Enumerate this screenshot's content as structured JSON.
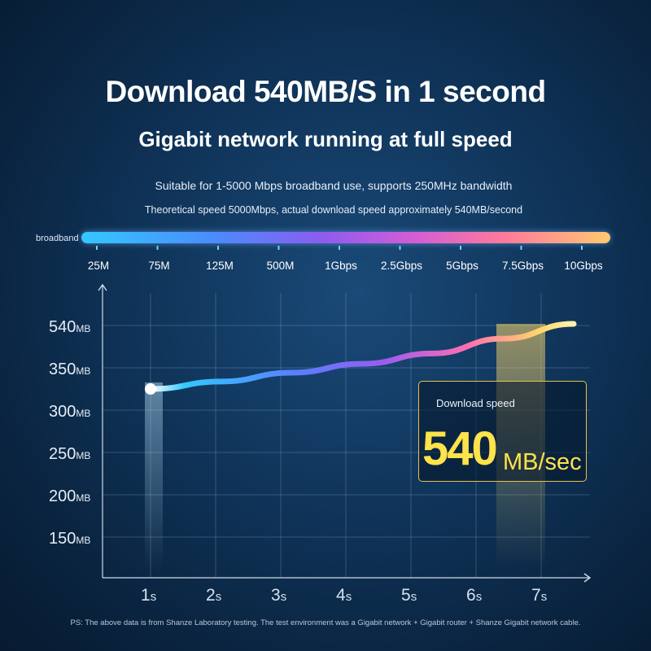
{
  "header": {
    "title": "Download 540MB/S in 1 second",
    "subtitle": "Gigabit network running at full speed",
    "line1": "Suitable for 1-5000 Mbps broadband use, supports 250MHz bandwidth",
    "line2": "Theoretical speed 5000Mbps, actual download speed approximately 540MB/second"
  },
  "broadband": {
    "label": "broadband",
    "ticks": [
      "25M",
      "75M",
      "125M",
      "500M",
      "1Gbps",
      "2.5Gbps",
      "5Gbps",
      "7.5Gbps",
      "10Gbps"
    ],
    "gradient": [
      "#33c8ff",
      "#4a8cff",
      "#8b5cf0",
      "#d05cd8",
      "#ff7a9a",
      "#ffc870"
    ]
  },
  "speed_box": {
    "label": "Download speed",
    "value": "540",
    "unit": "MB/sec",
    "accent": "#ffe34a"
  },
  "chart_data": {
    "type": "line",
    "y_ticks": [
      {
        "value": "540",
        "unit": "MB"
      },
      {
        "value": "350",
        "unit": "MB"
      },
      {
        "value": "300",
        "unit": "MB"
      },
      {
        "value": "250",
        "unit": "MB"
      },
      {
        "value": "200",
        "unit": "MB"
      },
      {
        "value": "150",
        "unit": "MB"
      }
    ],
    "x_ticks": [
      {
        "value": "1",
        "unit": "s"
      },
      {
        "value": "2",
        "unit": "s"
      },
      {
        "value": "3",
        "unit": "s"
      },
      {
        "value": "4",
        "unit": "s"
      },
      {
        "value": "5",
        "unit": "s"
      },
      {
        "value": "6",
        "unit": "s"
      },
      {
        "value": "7",
        "unit": "s"
      }
    ],
    "series": [
      {
        "x": [
          1,
          2,
          3,
          4,
          5,
          6,
          7
        ],
        "y": [
          320,
          345,
          375,
          405,
          440,
          490,
          540
        ]
      }
    ],
    "grid": true
  },
  "footnote": "PS: The above data is from Shanze Laboratory testing. The test environment was a Gigabit network + Gigabit router + Shanze Gigabit network cable."
}
